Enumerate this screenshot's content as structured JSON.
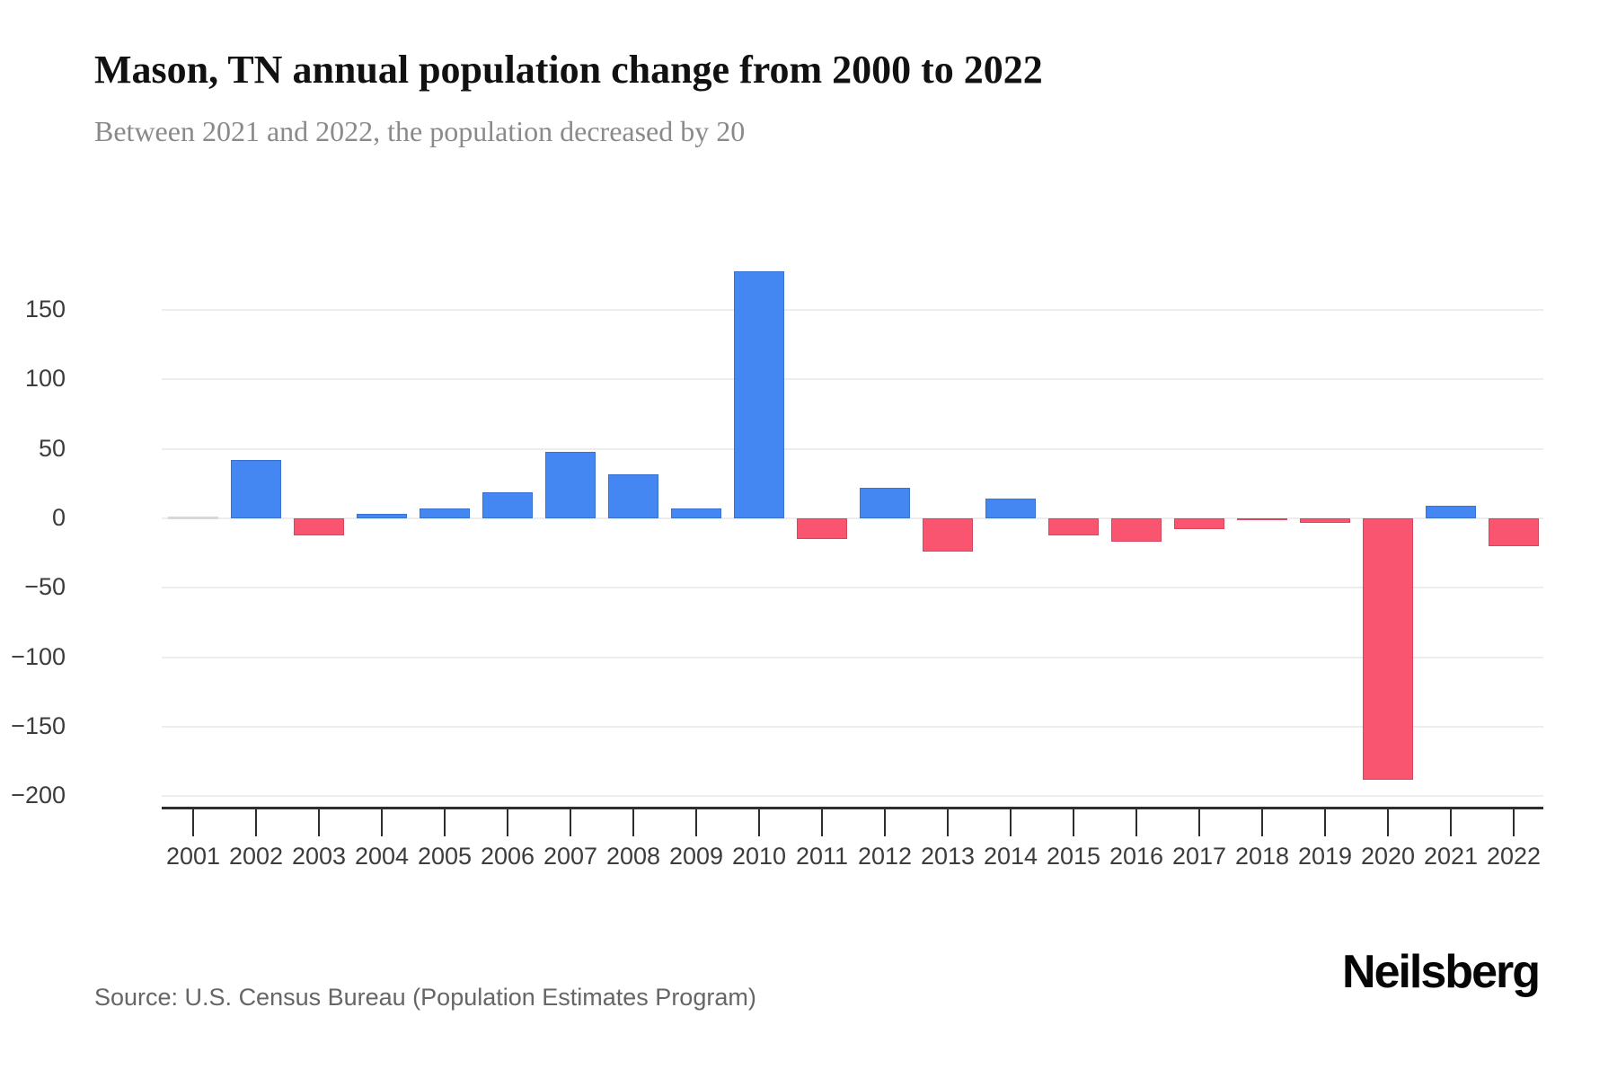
{
  "header": {
    "title": "Mason, TN annual population change from 2000 to 2022",
    "subtitle": "Between 2021 and 2022, the population decreased by 20"
  },
  "chart_data": {
    "type": "bar",
    "title": "Mason, TN annual population change from 2000 to 2022",
    "subtitle": "Between 2021 and 2022, the population decreased by 20",
    "categories": [
      "2001",
      "2002",
      "2003",
      "2004",
      "2005",
      "2006",
      "2007",
      "2008",
      "2009",
      "2010",
      "2011",
      "2012",
      "2013",
      "2014",
      "2015",
      "2016",
      "2017",
      "2018",
      "2019",
      "2020",
      "2021",
      "2022"
    ],
    "values": [
      0,
      42,
      -12,
      3,
      7,
      19,
      48,
      32,
      7,
      178,
      -15,
      22,
      -24,
      14,
      -12,
      -17,
      -8,
      -1,
      -3,
      -188,
      9,
      -20
    ],
    "xlabel": "",
    "ylabel": "",
    "ylim": [
      -200,
      180
    ],
    "yticks": [
      150,
      100,
      50,
      0,
      -50,
      -100,
      -150,
      -200
    ],
    "grid": true,
    "legend": false,
    "colors": {
      "positive": "#4486f2",
      "negative": "#fa5570",
      "zero": "#d8d8d8",
      "gridline": "#ededed",
      "axis": "#2e2e2e"
    }
  },
  "footer": {
    "source": "Source: U.S. Census Bureau (Population Estimates Program)",
    "brand": "Neilsberg"
  }
}
